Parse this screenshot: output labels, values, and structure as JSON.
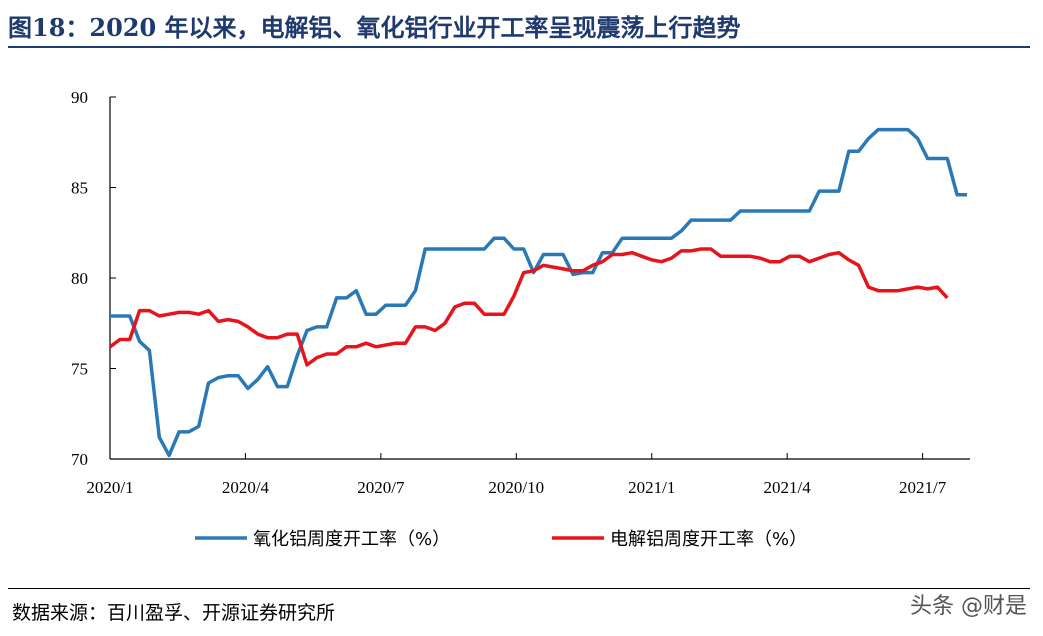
{
  "title": "图18：2020 年以来，电解铝、氧化铝行业开工率呈现震荡上行趋势",
  "source": "数据来源：百川盈孚、开源证券研究所",
  "watermark": "头条 @财是",
  "colors": {
    "title": "#1f3a6e",
    "series_blue": "#2a79b6",
    "series_red": "#e8141c"
  },
  "chart_data": {
    "type": "line",
    "title": "",
    "xlabel": "",
    "ylabel": "",
    "ylim": [
      70,
      90
    ],
    "yticks": [
      70,
      75,
      80,
      85,
      90
    ],
    "xticks": [
      "2020/1",
      "2020/4",
      "2020/7",
      "2020/10",
      "2021/1",
      "2021/4",
      "2021/7"
    ],
    "grid": false,
    "legend_position": "bottom",
    "x_weeks": [
      0,
      1,
      2,
      3,
      4,
      5,
      6,
      7,
      8,
      9,
      10,
      11,
      12,
      13,
      14,
      15,
      16,
      17,
      18,
      19,
      20,
      21,
      22,
      23,
      24,
      25,
      26,
      27,
      28,
      29,
      30,
      31,
      32,
      33,
      34,
      35,
      36,
      37,
      38,
      39,
      40,
      41,
      42,
      43,
      44,
      45,
      46,
      47,
      48,
      49,
      50,
      51,
      52,
      53,
      54,
      55,
      56,
      57,
      58,
      59,
      60,
      61,
      62,
      63,
      64,
      65,
      66,
      67,
      68,
      69,
      70,
      71,
      72,
      73,
      74,
      75,
      76,
      77,
      78,
      79,
      80,
      81,
      82
    ],
    "series": [
      {
        "name": "氧化铝周度开工率（%）",
        "color": "#2a79b6",
        "values": [
          77.9,
          77.9,
          77.9,
          76.5,
          76.0,
          71.2,
          70.2,
          71.5,
          71.5,
          71.8,
          74.2,
          74.5,
          74.6,
          74.6,
          73.9,
          74.4,
          75.1,
          74.0,
          74.0,
          75.7,
          77.1,
          77.3,
          77.3,
          78.9,
          78.9,
          79.3,
          78.0,
          78.0,
          78.5,
          78.5,
          78.5,
          79.3,
          81.6,
          81.6,
          81.6,
          81.6,
          81.6,
          81.6,
          81.6,
          82.2,
          82.2,
          81.6,
          81.6,
          80.3,
          81.3,
          81.3,
          81.3,
          80.2,
          80.3,
          80.3,
          81.4,
          81.4,
          82.2,
          82.2,
          82.2,
          82.2,
          82.2,
          82.2,
          82.6,
          83.2,
          83.2,
          83.2,
          83.2,
          83.2,
          83.7,
          83.7,
          83.7,
          83.7,
          83.7,
          83.7,
          83.7,
          83.7,
          84.8,
          84.8,
          84.8,
          87.0,
          87.0,
          87.7,
          88.2,
          88.2,
          88.2,
          88.2,
          87.7
        ]
      },
      {
        "name": "电解铝周度开工率（%）",
        "color": "#e8141c",
        "values": [
          76.2,
          76.6,
          76.6,
          78.2,
          78.2,
          77.9,
          78.0,
          78.1,
          78.1,
          78.0,
          78.2,
          77.6,
          77.7,
          77.6,
          77.3,
          76.9,
          76.7,
          76.7,
          76.9,
          76.9,
          75.2,
          75.6,
          75.8,
          75.8,
          76.2,
          76.2,
          76.4,
          76.2,
          76.3,
          76.4,
          76.4,
          77.3,
          77.3,
          77.1,
          77.5,
          78.4,
          78.6,
          78.6,
          78.0,
          78.0,
          78.0,
          79.0,
          80.3,
          80.4,
          80.7,
          80.6,
          80.5,
          80.4,
          80.4,
          80.7,
          80.9,
          81.3,
          81.3,
          81.4,
          81.2,
          81.0,
          80.9,
          81.1,
          81.5,
          81.5,
          81.6,
          81.6,
          81.2,
          81.2,
          81.2,
          81.2,
          81.1,
          80.9,
          80.9,
          81.2,
          81.2,
          80.9,
          81.1,
          81.3,
          81.4,
          81.0,
          80.7,
          79.5,
          79.3,
          79.3,
          79.3,
          79.4,
          79.5
        ]
      }
    ],
    "tail": {
      "oxide": [
        86.6,
        86.6,
        86.6,
        84.6,
        84.6
      ],
      "electrolytic": [
        79.4,
        79.5,
        78.9
      ]
    }
  }
}
